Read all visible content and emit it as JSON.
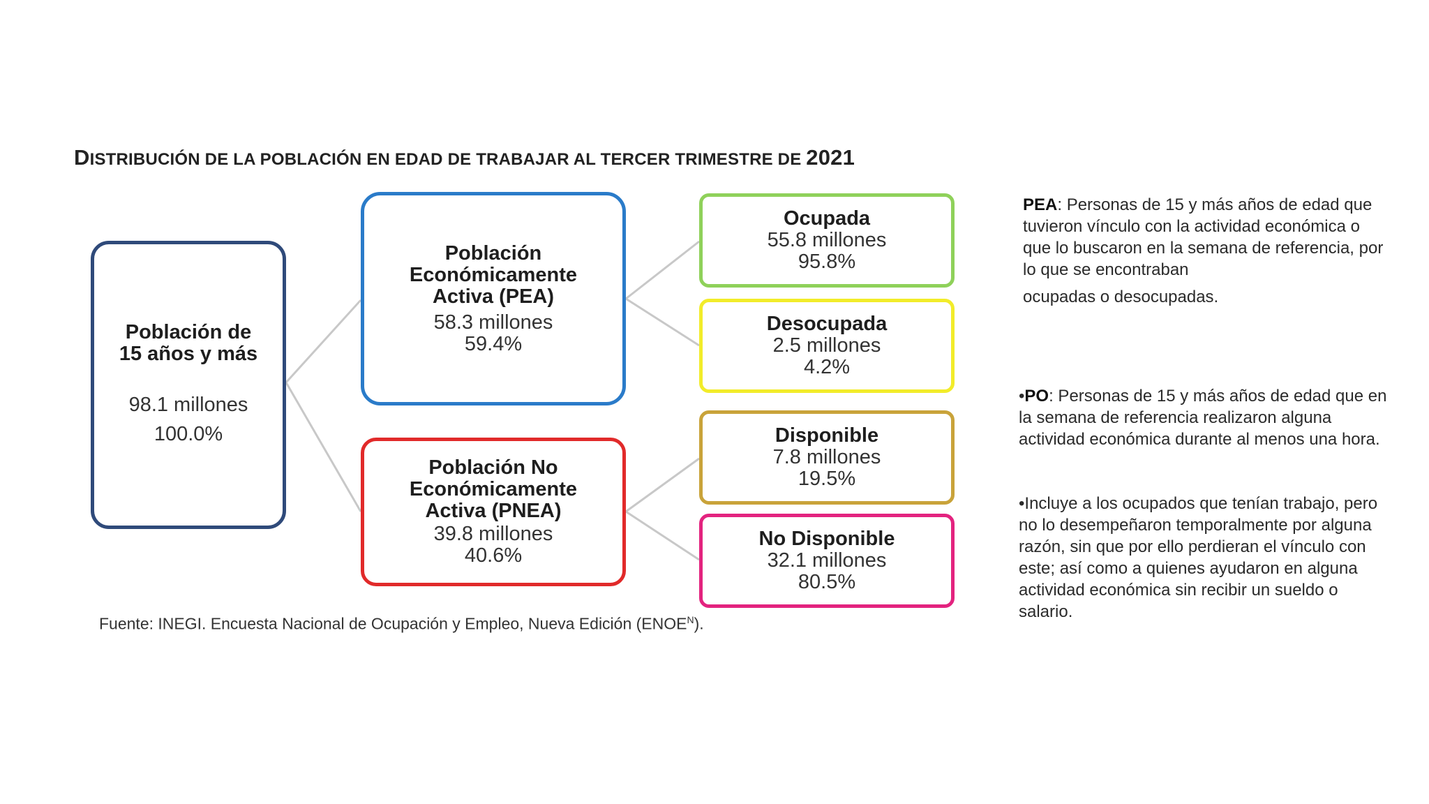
{
  "title": {
    "parts": [
      {
        "text": "D",
        "small": false
      },
      {
        "text": "ISTRIBUCIÓN DE LA POBLACIÓN EN EDAD DE TRABAJAR AL TERCER TRIMESTRE DE ",
        "small": true
      },
      {
        "text": "2021",
        "small": false
      }
    ]
  },
  "diagram": {
    "root": {
      "head": [
        "Población de",
        "15 años y más"
      ],
      "value": "98.1 millones",
      "percent": "100.0%",
      "color": "#2f4a7a"
    },
    "pea": {
      "head": [
        "Población",
        "Económicamente",
        "Activa (PEA)"
      ],
      "value": "58.3 millones",
      "percent": "59.4%",
      "color": "#2a7bc9"
    },
    "pnea": {
      "head": [
        "Población No",
        "Económicamente",
        "Activa (PNEA)"
      ],
      "value": "39.8 millones",
      "percent": "40.6%",
      "color": "#e12a2a"
    },
    "ocupada": {
      "head": "Ocupada",
      "value": "55.8 millones",
      "percent": "95.8%",
      "color": "#8fd15a"
    },
    "desocupada": {
      "head": "Desocupada",
      "value": "2.5 millones",
      "percent": "4.2%",
      "color": "#f2ec2a"
    },
    "disponible": {
      "head": "Disponible",
      "value": "7.8 millones",
      "percent": "19.5%",
      "color": "#c9a33a"
    },
    "no_disponible": {
      "head": "No Disponible",
      "value": "32.1 millones",
      "percent": "80.5%",
      "color": "#e3237f"
    }
  },
  "source": {
    "text": "Fuente: INEGI. Encuesta Nacional de Ocupación y Empleo, Nueva Edición (ENOE",
    "sup": "N",
    "end": ")."
  },
  "notes": {
    "pea": {
      "term": "PEA",
      "text": ": Personas de 15 y más años de edad que tuvieron vínculo con la actividad económica o que lo buscaron en la semana de referencia, por lo que se encontraban",
      "last": "ocupadas o desocupadas."
    },
    "po": {
      "bullet": "•",
      "term": "PO",
      "text": ": Personas de 15 y más años de edad que en la semana de referencia realizaron alguna actividad económica durante al menos una hora."
    },
    "incluye": {
      "text": "•Incluye a los ocupados que tenían trabajo, pero no lo desempeñaron temporalmente por alguna razón, sin que por ello perdieran el vínculo con este; así como a quienes ayudaron en alguna actividad económica sin recibir un sueldo o salario."
    }
  }
}
